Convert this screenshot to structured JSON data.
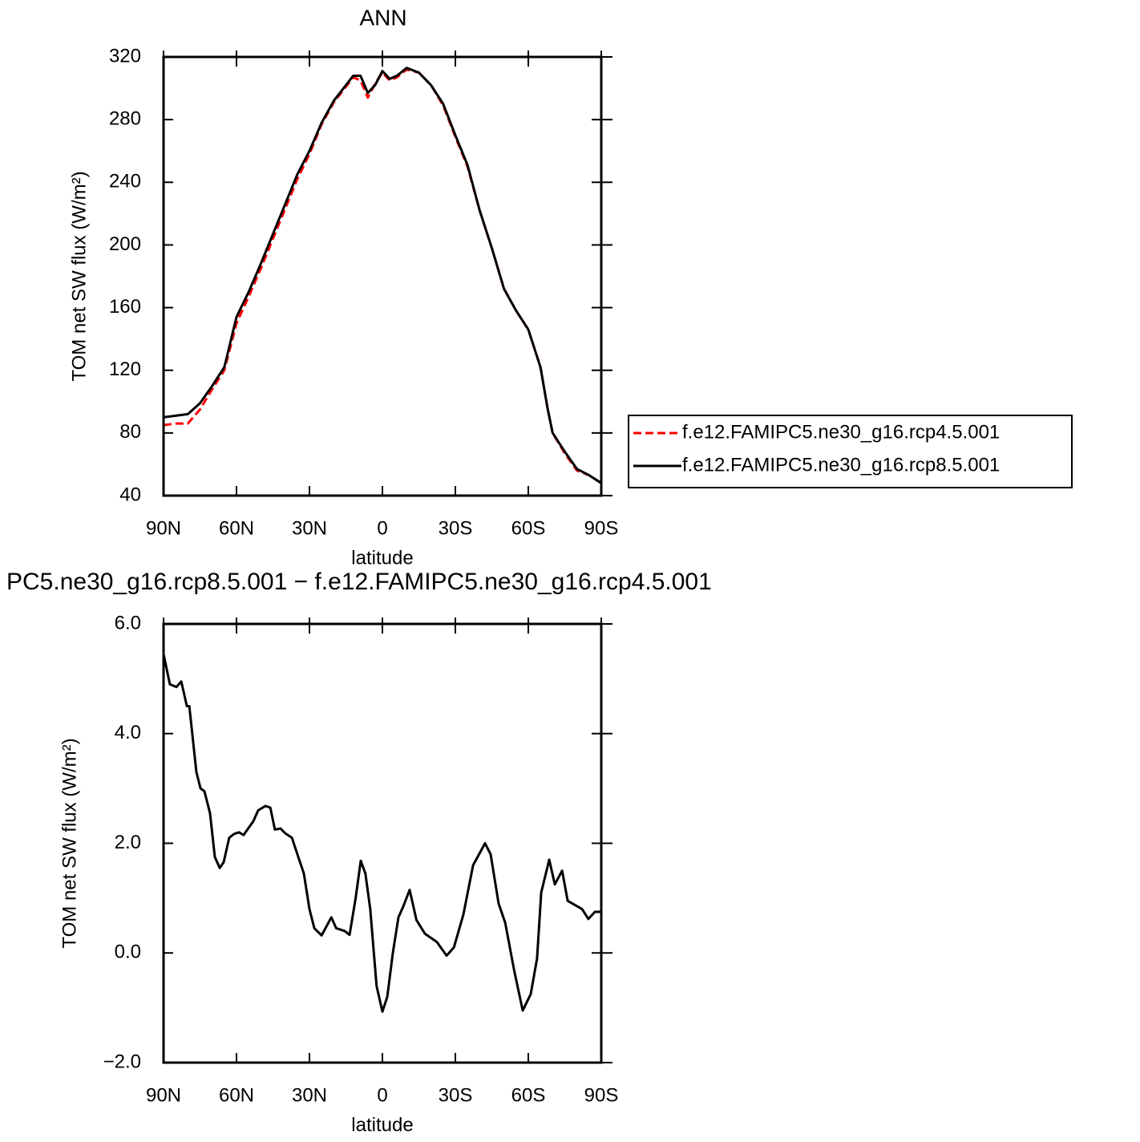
{
  "chart_data": [
    {
      "type": "line",
      "title": "ANN",
      "xlabel": "latitude",
      "ylabel": "TOM net SW flux (W/m²)",
      "x": [
        90,
        85,
        80,
        75,
        70,
        65,
        60,
        55,
        50,
        45,
        40,
        35,
        30,
        25,
        20,
        15,
        12,
        9,
        6,
        3,
        0,
        -3,
        -6,
        -10,
        -15,
        -20,
        -25,
        -30,
        -35,
        -40,
        -45,
        -50,
        -55,
        -60,
        -65,
        -68,
        -70,
        -75,
        -80,
        -85,
        -90
      ],
      "series": [
        {
          "name": "f.e12.FAMIPC5.ne30_g16.rcp4.5.001",
          "color": "#ff0000",
          "linestyle": "dashed",
          "values": [
            85,
            86,
            86,
            95,
            108,
            120,
            150,
            167,
            185,
            204,
            223,
            242,
            258,
            277,
            291,
            301,
            307,
            305,
            294,
            303,
            310,
            305,
            307,
            312,
            310,
            302,
            289,
            269,
            250,
            222,
            198,
            172,
            158,
            146,
            122,
            95,
            80,
            67,
            56,
            53,
            48
          ]
        },
        {
          "name": "f.e12.FAMIPC5.ne30_g16.rcp8.5.001",
          "color": "#000000",
          "linestyle": "solid",
          "values": [
            90,
            91,
            92,
            99,
            110,
            122,
            154,
            170,
            188,
            207,
            226,
            245,
            260,
            278,
            292,
            302,
            308,
            308,
            297,
            302,
            311,
            306,
            308,
            313,
            310,
            302,
            290,
            270,
            251,
            222,
            198,
            172,
            158,
            146,
            122,
            95,
            80,
            68,
            57,
            53,
            48
          ]
        }
      ],
      "xlim": [
        90,
        -90
      ],
      "ylim": [
        40,
        320
      ],
      "xticks": [
        {
          "value": 90,
          "label": "90N"
        },
        {
          "value": 60,
          "label": "60N"
        },
        {
          "value": 30,
          "label": "30N"
        },
        0,
        {
          "value": -30,
          "label": "30S"
        },
        {
          "value": -60,
          "label": "60S"
        },
        {
          "value": -90,
          "label": "90S"
        }
      ],
      "yticks": [
        40,
        80,
        120,
        160,
        200,
        240,
        280,
        320
      ],
      "legend": "right"
    },
    {
      "type": "line",
      "title": "PC5.ne30_g16.rcp8.5.001 − f.e12.FAMIPC5.ne30_g16.rcp4.5.001",
      "xlabel": "latitude",
      "ylabel": "TOM net SW flux (W/m²)",
      "x": [
        90,
        87.4,
        84.7,
        82.7,
        80.4,
        79.4,
        76.5,
        74.8,
        73.2,
        70.9,
        68.9,
        66.9,
        65.3,
        63,
        61,
        59,
        57.1,
        53.1,
        51.1,
        48.1,
        46.1,
        44.2,
        41.9,
        39.9,
        37.2,
        34.6,
        32.3,
        30,
        28,
        25,
        21,
        19,
        15.5,
        13.5,
        11,
        8.9,
        7,
        5,
        2.4,
        0,
        -2,
        -4.3,
        -6.6,
        -8.6,
        -11.2,
        -14,
        -17.5,
        -22.4,
        -26.4,
        -29.4,
        -33.3,
        -37.3,
        -42.2,
        -44.5,
        -47.8,
        -50.5,
        -54.1,
        -57.7,
        -61,
        -63.6,
        -65.3,
        -68.6,
        -70.9,
        -73.9,
        -76.2,
        -82.1,
        -84.7,
        -87.4,
        -90
      ],
      "values": [
        5.45,
        4.9,
        4.85,
        4.95,
        4.5,
        4.5,
        3.3,
        3.0,
        2.95,
        2.55,
        1.75,
        1.55,
        1.65,
        2.1,
        2.17,
        2.2,
        2.15,
        2.4,
        2.6,
        2.68,
        2.65,
        2.25,
        2.27,
        2.18,
        2.1,
        1.75,
        1.45,
        0.8,
        0.45,
        0.32,
        0.65,
        0.45,
        0.4,
        0.33,
        1.0,
        1.68,
        1.45,
        0.8,
        -0.6,
        -1.07,
        -0.8,
        0.0,
        0.65,
        0.85,
        1.15,
        0.6,
        0.35,
        0.2,
        -0.05,
        0.1,
        0.7,
        1.6,
        2.0,
        1.8,
        0.9,
        0.55,
        -0.3,
        -1.05,
        -0.75,
        -0.1,
        1.1,
        1.7,
        1.25,
        1.5,
        0.95,
        0.8,
        0.62,
        0.75,
        0.75
      ],
      "color": "#000000",
      "xlim": [
        90,
        -90
      ],
      "ylim": [
        -2,
        6
      ],
      "xticks": [
        {
          "value": 90,
          "label": "90N"
        },
        {
          "value": 60,
          "label": "60N"
        },
        {
          "value": 30,
          "label": "30N"
        },
        0,
        {
          "value": -30,
          "label": "30S"
        },
        {
          "value": -60,
          "label": "60S"
        },
        {
          "value": -90,
          "label": "90S"
        }
      ],
      "yticks": [
        {
          "value": -2,
          "label": "−2.0"
        },
        {
          "value": 0,
          "label": "0.0"
        },
        {
          "value": 2,
          "label": "2.0"
        },
        {
          "value": 4,
          "label": "4.0"
        },
        {
          "value": 6,
          "label": "6.0"
        }
      ]
    }
  ]
}
